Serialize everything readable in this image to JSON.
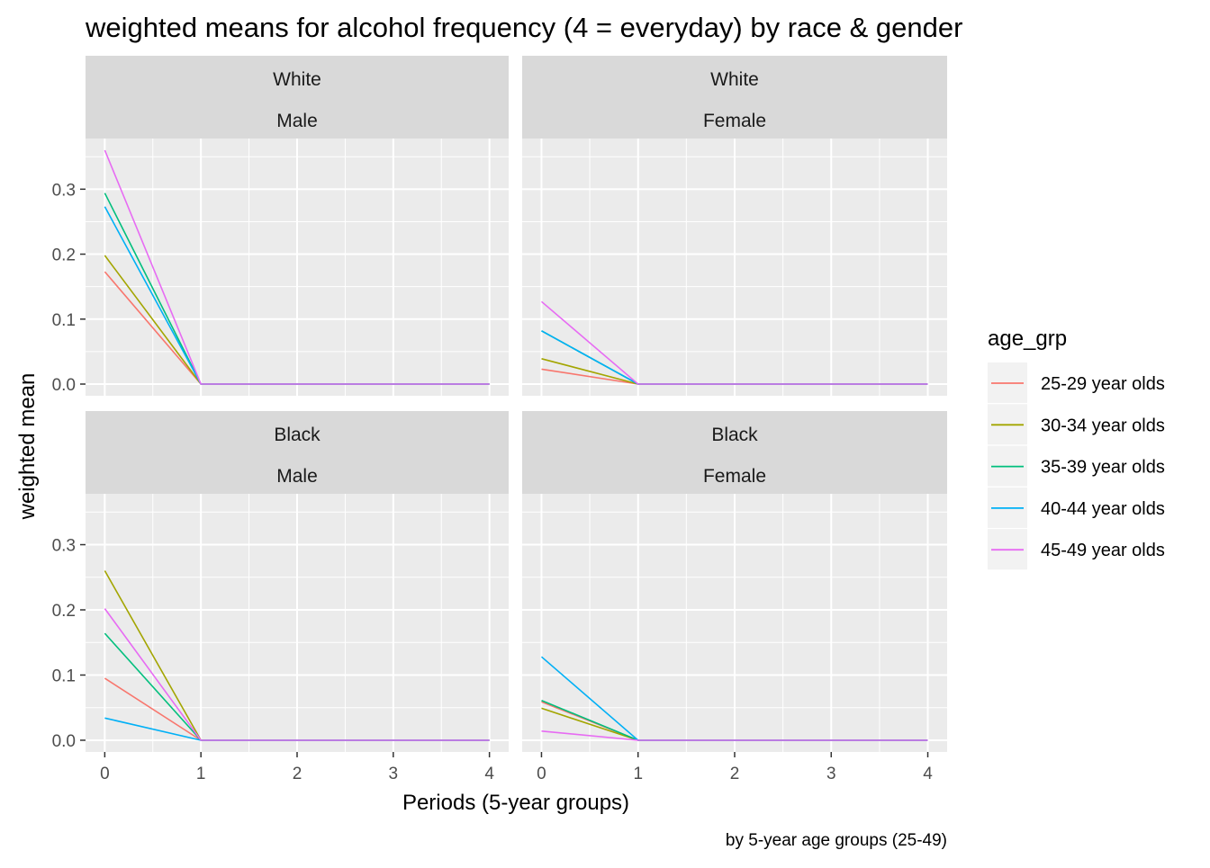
{
  "chart_data": {
    "type": "line",
    "title": "weighted means for alcohol frequency (4 = everyday) by race & gender",
    "caption": "by 5-year age groups (25-49)",
    "xlabel": "Periods (5-year groups)",
    "ylabel": "weighted mean",
    "x": [
      0,
      1,
      2,
      3,
      4
    ],
    "x_ticks": [
      "0",
      "1",
      "2",
      "3",
      "4"
    ],
    "y_ticks": [
      "0.0",
      "0.1",
      "0.2",
      "0.3"
    ],
    "xlim": [
      -0.2,
      4.2
    ],
    "ylim": [
      -0.018,
      0.378
    ],
    "grid": true,
    "legend": {
      "title": "age_grp",
      "position": "right",
      "entries": [
        {
          "label": "25-29 year olds",
          "color": "#F8766D"
        },
        {
          "label": "30-34 year olds",
          "color": "#A3A500"
        },
        {
          "label": "35-39 year olds",
          "color": "#00BF7D"
        },
        {
          "label": "40-44 year olds",
          "color": "#00B0F6"
        },
        {
          "label": "45-49 year olds",
          "color": "#E76BF3"
        }
      ]
    },
    "panels": [
      {
        "race": "White",
        "gender": "Male",
        "series": [
          {
            "name": "25-29 year olds",
            "values": [
              0.173,
              0,
              0,
              0,
              0
            ]
          },
          {
            "name": "30-34 year olds",
            "values": [
              0.198,
              0,
              0,
              0,
              0
            ]
          },
          {
            "name": "35-39 year olds",
            "values": [
              0.294,
              0,
              0,
              0,
              0
            ]
          },
          {
            "name": "40-44 year olds",
            "values": [
              0.273,
              0,
              0,
              0,
              0
            ]
          },
          {
            "name": "45-49 year olds",
            "values": [
              0.36,
              0,
              0,
              0,
              0
            ]
          }
        ]
      },
      {
        "race": "White",
        "gender": "Female",
        "series": [
          {
            "name": "25-29 year olds",
            "values": [
              0.023,
              0,
              0,
              0,
              0
            ]
          },
          {
            "name": "30-34 year olds",
            "values": [
              0.039,
              0,
              0,
              0,
              0
            ]
          },
          {
            "name": "35-39 year olds",
            "values": [
              0.082,
              0,
              0,
              0,
              0
            ]
          },
          {
            "name": "40-44 year olds",
            "values": [
              0.082,
              0,
              0,
              0,
              0
            ]
          },
          {
            "name": "45-49 year olds",
            "values": [
              0.127,
              0,
              0,
              0,
              0
            ]
          }
        ]
      },
      {
        "race": "Black",
        "gender": "Male",
        "series": [
          {
            "name": "25-29 year olds",
            "values": [
              0.095,
              0,
              0,
              0,
              0
            ]
          },
          {
            "name": "30-34 year olds",
            "values": [
              0.26,
              0,
              0,
              0,
              0
            ]
          },
          {
            "name": "35-39 year olds",
            "values": [
              0.164,
              0,
              0,
              0,
              0
            ]
          },
          {
            "name": "40-44 year olds",
            "values": [
              0.034,
              0,
              0,
              0,
              0
            ]
          },
          {
            "name": "45-49 year olds",
            "values": [
              0.202,
              0,
              0,
              0,
              0
            ]
          }
        ]
      },
      {
        "race": "Black",
        "gender": "Female",
        "series": [
          {
            "name": "25-29 year olds",
            "values": [
              0.059,
              0,
              0,
              0,
              0
            ]
          },
          {
            "name": "30-34 year olds",
            "values": [
              0.049,
              0,
              0,
              0,
              0
            ]
          },
          {
            "name": "35-39 year olds",
            "values": [
              0.061,
              0,
              0,
              0,
              0
            ]
          },
          {
            "name": "40-44 year olds",
            "values": [
              0.128,
              0,
              0,
              0,
              0
            ]
          },
          {
            "name": "45-49 year olds",
            "values": [
              0.014,
              0,
              0,
              0,
              0
            ]
          }
        ]
      }
    ]
  }
}
